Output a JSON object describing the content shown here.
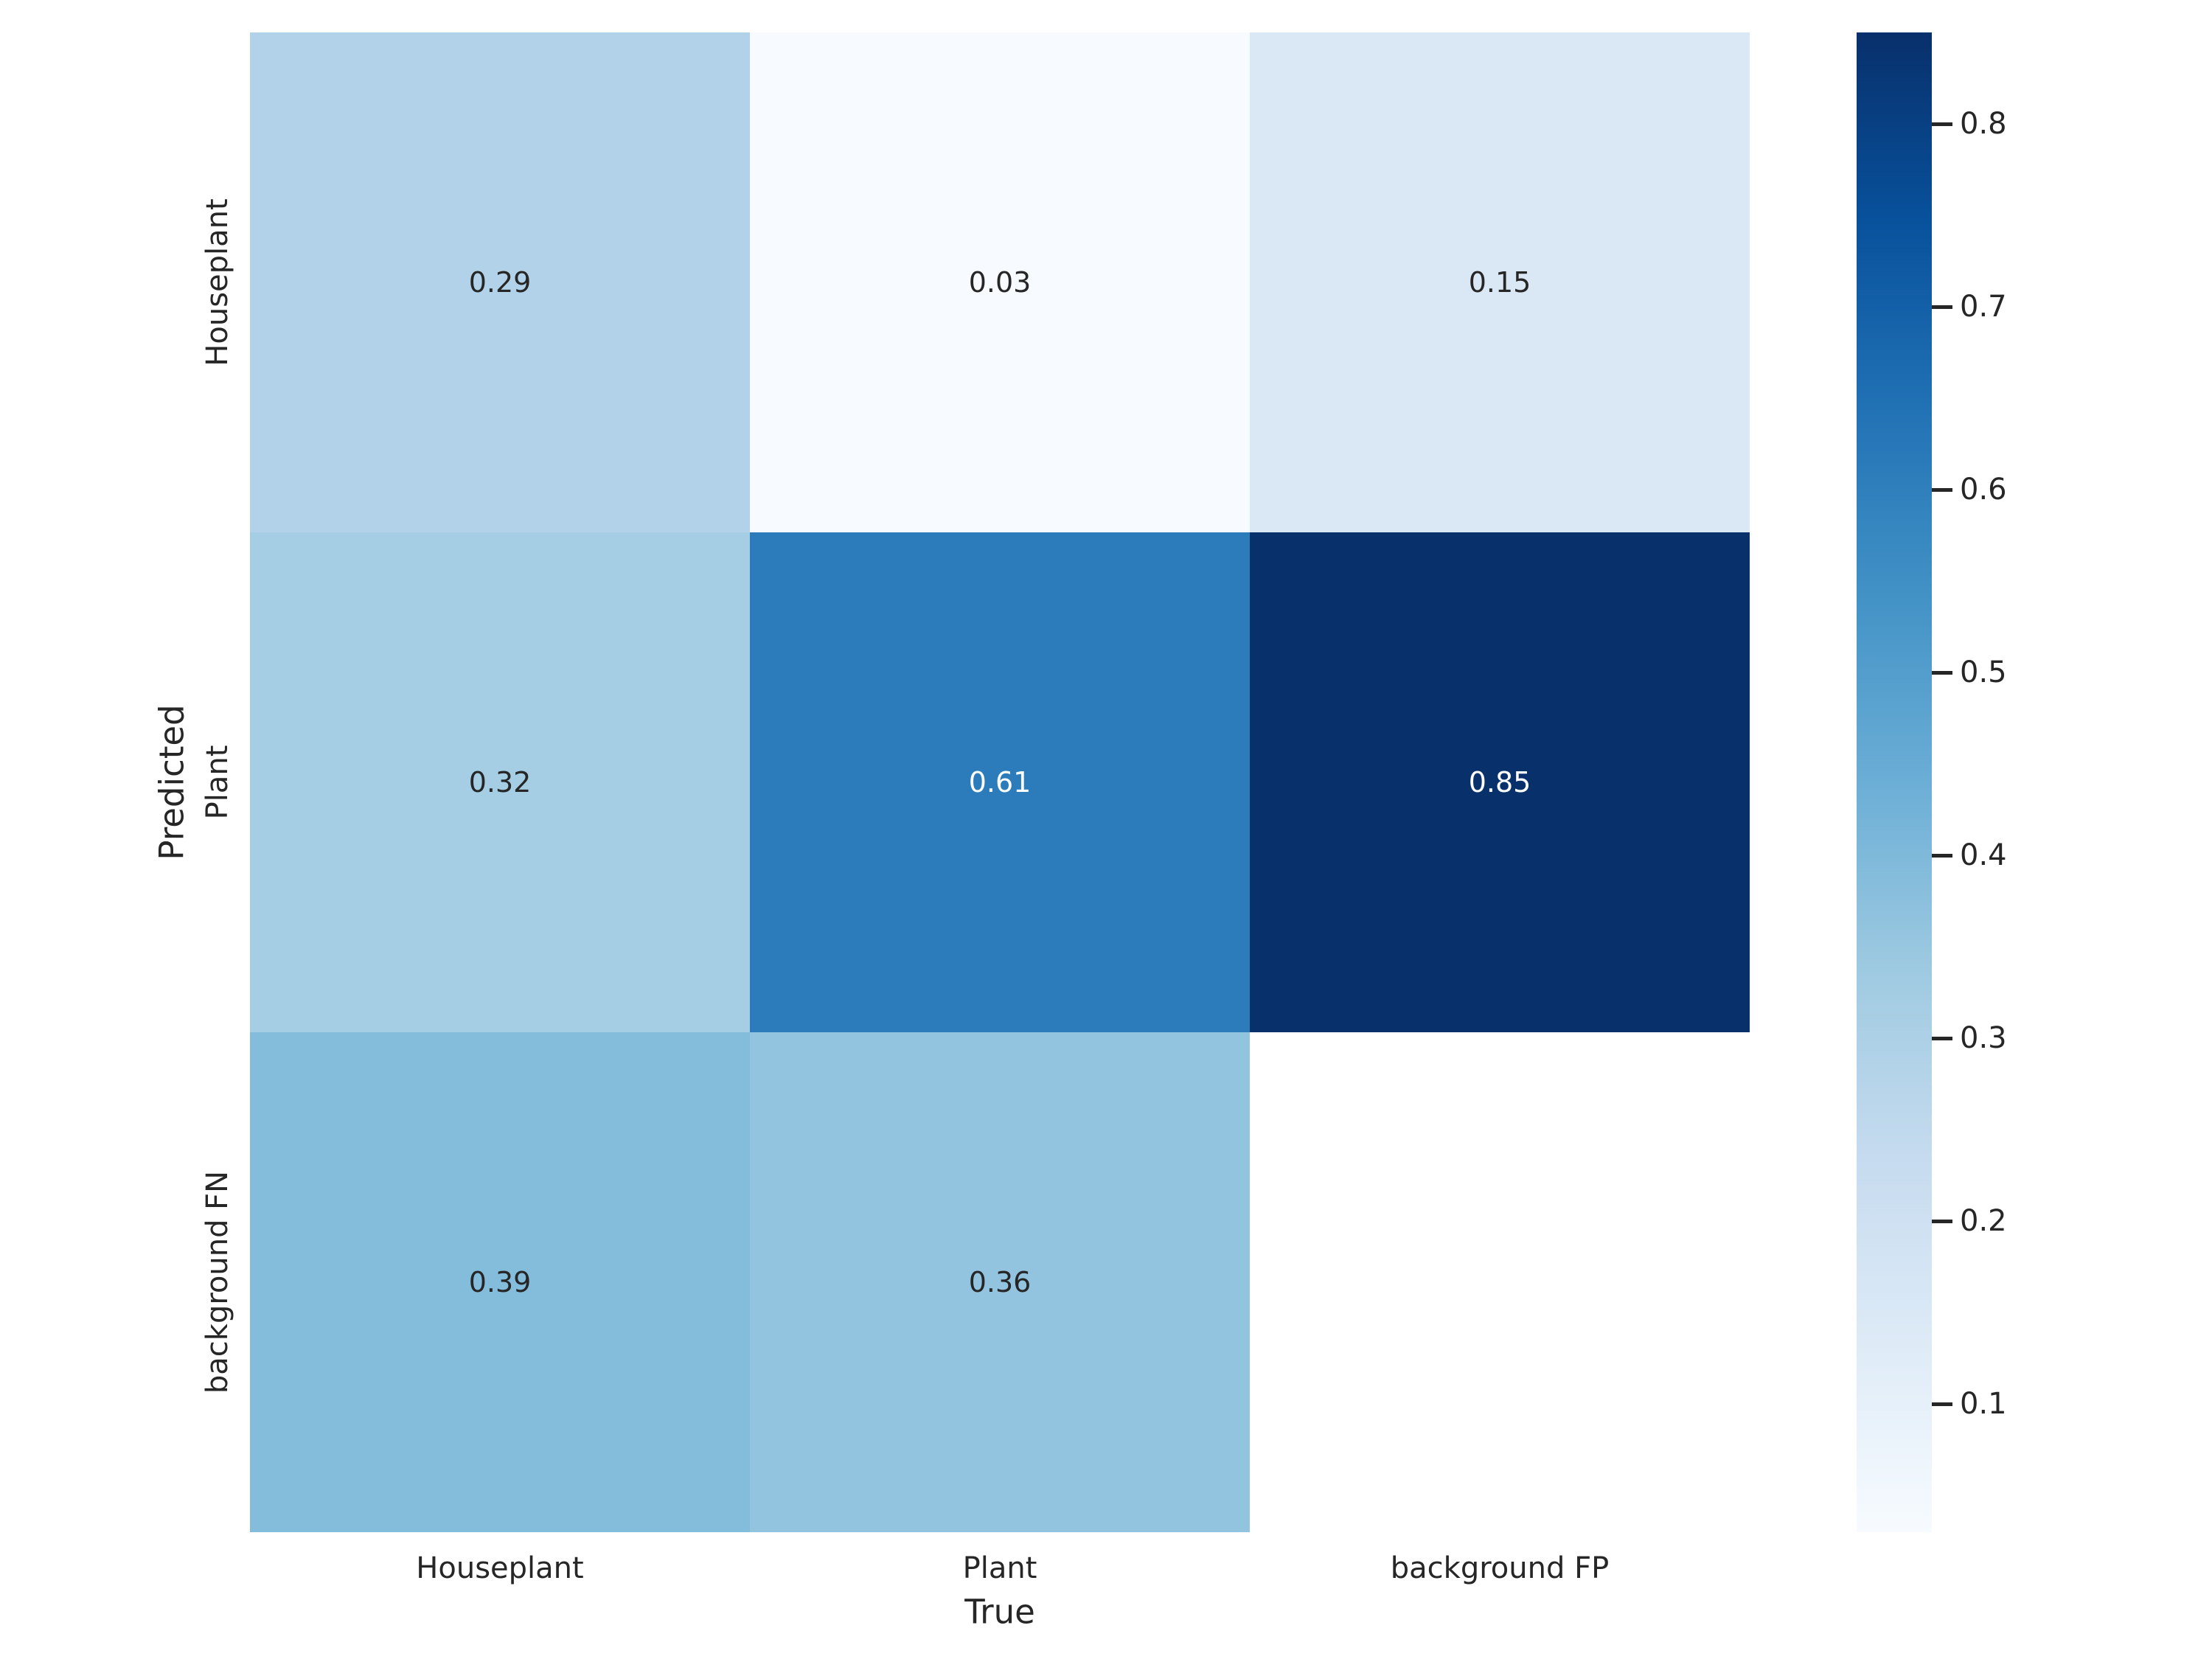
{
  "figure": {
    "background": "#ffffff",
    "text_color": "#262626"
  },
  "chart_data": {
    "type": "heatmap",
    "title": "",
    "xlabel": "True",
    "ylabel": "Predicted",
    "x_categories": [
      "Houseplant",
      "Plant",
      "background FP"
    ],
    "y_categories": [
      "Houseplant",
      "Plant",
      "background FN"
    ],
    "values": [
      [
        0.29,
        0.03,
        0.15
      ],
      [
        0.32,
        0.61,
        0.85
      ],
      [
        0.39,
        0.36,
        null
      ]
    ],
    "cell_labels": [
      [
        "0.29",
        "0.03",
        "0.15"
      ],
      [
        "0.32",
        "0.61",
        "0.85"
      ],
      [
        "0.39",
        "0.36",
        ""
      ]
    ],
    "cell_colors": [
      [
        "#b1d2e8",
        "#f7fbff",
        "#dae8f6"
      ],
      [
        "#a5cde3",
        "#2c7cbb",
        "#08306b"
      ],
      [
        "#84bcdb",
        "#93c4df",
        "#ffffff"
      ]
    ],
    "cell_text_colors": [
      [
        "#262626",
        "#262626",
        "#262626"
      ],
      [
        "#262626",
        "#ffffff",
        "#ffffff"
      ],
      [
        "#262626",
        "#262626",
        null
      ]
    ],
    "colormap": "Blues",
    "colormap_stops": [
      "#f7fbff",
      "#deebf7",
      "#c6dbef",
      "#9ecae1",
      "#6baed6",
      "#4292c6",
      "#2171b5",
      "#08519c",
      "#08306b"
    ],
    "vmin": 0.03,
    "vmax": 0.85,
    "colorbar_ticks": [
      0.1,
      0.2,
      0.3,
      0.4,
      0.5,
      0.6,
      0.7,
      0.8
    ],
    "colorbar_tick_labels": [
      "0.1",
      "0.2",
      "0.3",
      "0.4",
      "0.5",
      "0.6",
      "0.7",
      "0.8"
    ],
    "grid": false,
    "legend_position": "colorbar-right"
  }
}
